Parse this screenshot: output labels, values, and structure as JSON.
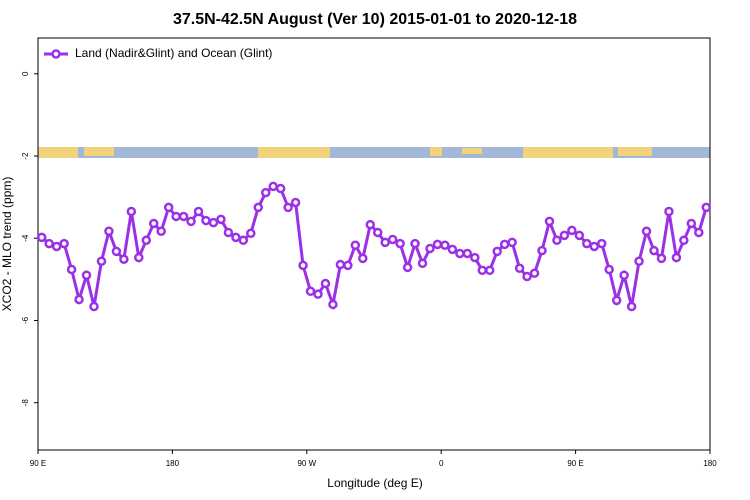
{
  "chart_data": {
    "type": "line",
    "title": "37.5N-42.5N August (Ver 10)   2015-01-01 to 2020-12-18",
    "x_label": "Longitude (deg E)",
    "y_label": "XCO2 - MLO trend (ppm)",
    "x": [
      92.5,
      97.5,
      102.5,
      107.5,
      112.5,
      117.5,
      122.5,
      127.5,
      132.5,
      137.5,
      142.5,
      147.5,
      152.5,
      157.5,
      162.5,
      167.5,
      172.5,
      177.5,
      182.5,
      187.5,
      192.5,
      197.5,
      202.5,
      207.5,
      212.5,
      217.5,
      222.5,
      227.5,
      232.5,
      237.5,
      242.5,
      247.5,
      252.5,
      257.5,
      262.5,
      267.5,
      272.5,
      277.5,
      282.5,
      287.5,
      292.5,
      297.5,
      302.5,
      307.5,
      312.5,
      317.5,
      322.5,
      327.5,
      332.5,
      337.5,
      342.5,
      347.5,
      352.5,
      357.5,
      362.5,
      367.5,
      372.5,
      377.5,
      382.5,
      387.5,
      392.5,
      397.5,
      402.5,
      407.5,
      412.5,
      417.5,
      422.5,
      427.5,
      432.5,
      437.5,
      442.5,
      447.5,
      452.5,
      457.5,
      462.5,
      467.5,
      472.5,
      477.5,
      482.5,
      487.5,
      492.5,
      497.5,
      502.5,
      507.5,
      512.5,
      517.5,
      522.5,
      527.5,
      532.5,
      537.5
    ],
    "series": [
      {
        "name": "Land (Nadir&Glint) and Ocean (Glint)",
        "color": "#9b30e8",
        "values": [
          -3.98,
          -4.13,
          -4.2,
          -4.13,
          -4.76,
          -5.49,
          -4.9,
          -5.66,
          -4.56,
          -3.83,
          -4.32,
          -4.51,
          -3.35,
          -4.47,
          -4.05,
          -3.64,
          -3.83,
          -3.25,
          -3.47,
          -3.47,
          -3.59,
          -3.35,
          -3.57,
          -3.62,
          -3.54,
          -3.86,
          -3.98,
          -4.05,
          -3.88,
          -3.25,
          -2.89,
          -2.74,
          -2.79,
          -3.25,
          -3.13,
          -4.66,
          -5.29,
          -5.36,
          -5.1,
          -5.61,
          -4.64,
          -4.66,
          -4.17,
          -4.49,
          -3.67,
          -3.86,
          -4.1,
          -4.03,
          -4.13,
          -4.71,
          -4.13,
          -4.61,
          -4.25,
          -4.15,
          -4.17,
          -4.27,
          -4.37,
          -4.37,
          -4.47,
          -4.78,
          -4.78,
          -4.32,
          -4.15,
          -4.1,
          -4.73,
          -4.93,
          -4.85,
          -4.3,
          -3.59,
          -4.05,
          -3.93,
          -3.81,
          -3.93,
          -4.13,
          -4.2,
          -4.13,
          -4.76,
          -5.51,
          -4.9,
          -5.66,
          -4.56,
          -3.83,
          -4.3,
          -4.49,
          -3.35,
          -4.47,
          -4.05,
          -3.64,
          -3.86,
          -3.25
        ]
      }
    ],
    "xlim": [
      90,
      540
    ],
    "xticks": [
      {
        "value": 90,
        "label": "90 E"
      },
      180,
      {
        "value": 270,
        "label": "90 W"
      },
      {
        "value": 360,
        "label": "0"
      },
      {
        "value": 450,
        "label": "90 E"
      },
      {
        "value": 540,
        "label": "180"
      }
    ],
    "ylim": [
      -9.15,
      0.87
    ],
    "yticks": [
      0,
      -2,
      -4,
      -6,
      -8
    ],
    "legend": "upper left"
  }
}
